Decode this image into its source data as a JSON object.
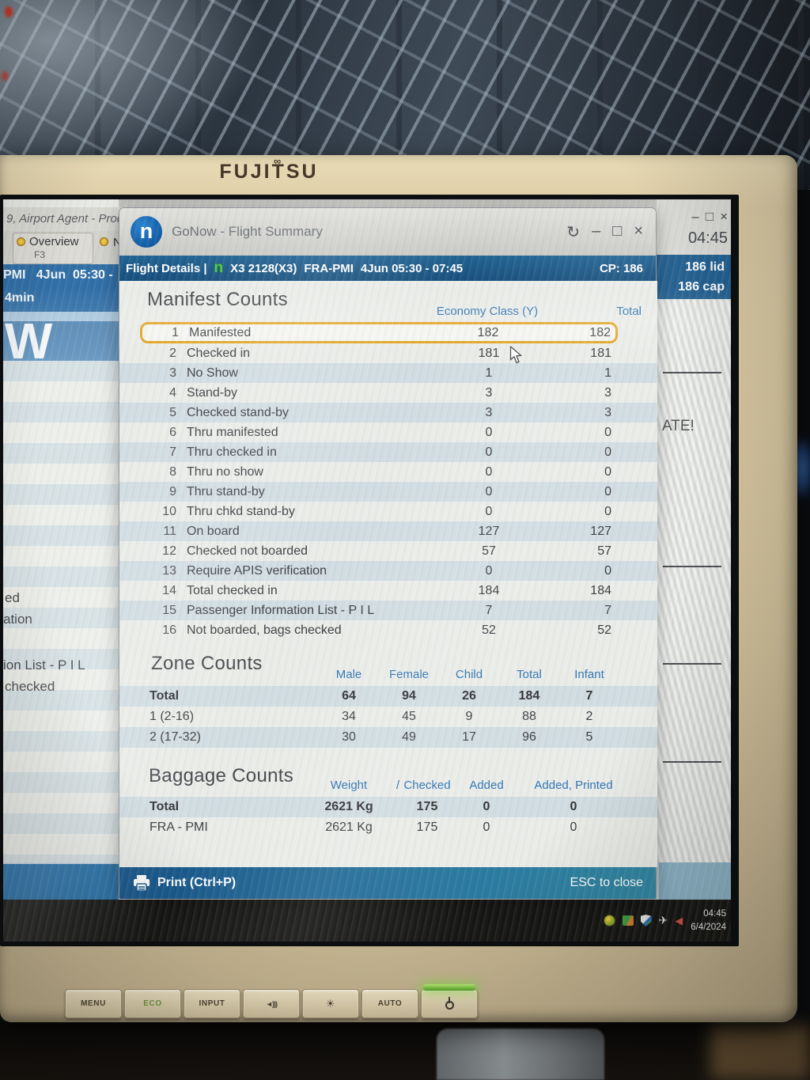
{
  "monitor": {
    "brand": "FUJITSU",
    "logo_mark": "∞",
    "buttons": [
      {
        "name": "menu-button",
        "type": "text",
        "label": "MENU"
      },
      {
        "name": "eco-button",
        "type": "text",
        "label": "ECO"
      },
      {
        "name": "input-button",
        "type": "text",
        "label": "INPUT"
      },
      {
        "name": "volume-button",
        "type": "icon",
        "icon": "speaker-icon"
      },
      {
        "name": "brightness-button",
        "type": "icon",
        "icon": "brightness-icon"
      },
      {
        "name": "auto-button",
        "type": "text",
        "label": "AUTO"
      },
      {
        "name": "power-button",
        "type": "icon",
        "icon": "power-icon"
      }
    ]
  },
  "background_left": {
    "window_title": "9, Airport Agent - Prodr",
    "tab": {
      "label": "Overview",
      "key": "F3"
    },
    "partial_tab": "N",
    "header_line": "PMI   4Jun  05:30 -",
    "duration": "4min",
    "big_letter": "W",
    "fragments": [
      "ed",
      "ation",
      "ion List - P I L",
      "checked"
    ]
  },
  "background_right": {
    "clock": "04:45",
    "icons": [
      "minimize-icon",
      "restore-icon",
      "close-icon"
    ],
    "rows": [
      "186 lid",
      "186 cap"
    ],
    "fragment": "ATE!"
  },
  "taskbar": {
    "time": "04:45",
    "date": "6/4/2024",
    "tray": [
      "antivirus-icon",
      "folder-icon",
      "security-shield-icon",
      "airplane-icon",
      "volume-alert-icon"
    ]
  },
  "gonow": {
    "logo_letter": "n",
    "title": "GoNow - Flight Summary",
    "titlebar_icons": [
      "refresh-icon",
      "minimize-icon",
      "maximize-icon",
      "close-icon"
    ],
    "flight_bar": {
      "prefix": "Flight Details |",
      "flight_icon": "gonow-flight-icon",
      "flight": "X3 2128(X3)",
      "route": "FRA-PMI",
      "schedule": "4Jun 05:30 - 07:45",
      "cp": "CP: 186"
    },
    "manifest": {
      "title": "Manifest Counts",
      "col_economy": "Economy Class (Y)",
      "col_total": "Total",
      "rows": [
        {
          "n": "1",
          "label": "Manifested",
          "eco": "182",
          "total": "182",
          "highlight": true
        },
        {
          "n": "2",
          "label": "Checked in",
          "eco": "181",
          "total": "181"
        },
        {
          "n": "3",
          "label": "No Show",
          "eco": "1",
          "total": "1"
        },
        {
          "n": "4",
          "label": "Stand-by",
          "eco": "3",
          "total": "3"
        },
        {
          "n": "5",
          "label": "Checked stand-by",
          "eco": "3",
          "total": "3"
        },
        {
          "n": "6",
          "label": "Thru manifested",
          "eco": "0",
          "total": "0"
        },
        {
          "n": "7",
          "label": "Thru checked in",
          "eco": "0",
          "total": "0"
        },
        {
          "n": "8",
          "label": "Thru no show",
          "eco": "0",
          "total": "0"
        },
        {
          "n": "9",
          "label": "Thru stand-by",
          "eco": "0",
          "total": "0"
        },
        {
          "n": "10",
          "label": "Thru chkd stand-by",
          "eco": "0",
          "total": "0"
        },
        {
          "n": "11",
          "label": "On board",
          "eco": "127",
          "total": "127"
        },
        {
          "n": "12",
          "label": "Checked not boarded",
          "eco": "57",
          "total": "57"
        },
        {
          "n": "13",
          "label": "Require APIS verification",
          "eco": "0",
          "total": "0"
        },
        {
          "n": "14",
          "label": "Total checked in",
          "eco": "184",
          "total": "184"
        },
        {
          "n": "15",
          "label": "Passenger Information List - P I L",
          "eco": "7",
          "total": "7"
        },
        {
          "n": "16",
          "label": "Not boarded, bags checked",
          "eco": "52",
          "total": "52"
        }
      ]
    },
    "zone": {
      "title": "Zone Counts",
      "columns": [
        "Male",
        "Female",
        "Child",
        "Total",
        "Infant"
      ],
      "rows": [
        {
          "label": "Total",
          "values": [
            "64",
            "94",
            "26",
            "184",
            "7"
          ],
          "bold": true,
          "striped": true
        },
        {
          "label": "1 (2-16)",
          "values": [
            "34",
            "45",
            "9",
            "88",
            "2"
          ]
        },
        {
          "label": "2 (17-32)",
          "values": [
            "30",
            "49",
            "17",
            "96",
            "5"
          ],
          "striped": true
        }
      ]
    },
    "baggage": {
      "title": "Baggage Counts",
      "col_weight": "Weight",
      "col_slash": "/",
      "col_checked": "Checked",
      "col_added": "Added",
      "col_added_printed": "Added, Printed",
      "rows": [
        {
          "label": "Total",
          "weight": "2621 Kg",
          "checked": "175",
          "added": "0",
          "added_printed": "0",
          "bold": true,
          "striped": true
        },
        {
          "label": "FRA - PMI",
          "weight": "2621 Kg",
          "checked": "175",
          "added": "0",
          "added_printed": "0"
        }
      ]
    },
    "footer": {
      "print": "Print (Ctrl+P)",
      "esc": "ESC to close"
    }
  },
  "colors": {
    "accent_blue": "#2e74b4",
    "header_bar": "#1f6293",
    "highlight_orange": "#e2a21c",
    "stripe_blue": "#cfdfe9"
  }
}
